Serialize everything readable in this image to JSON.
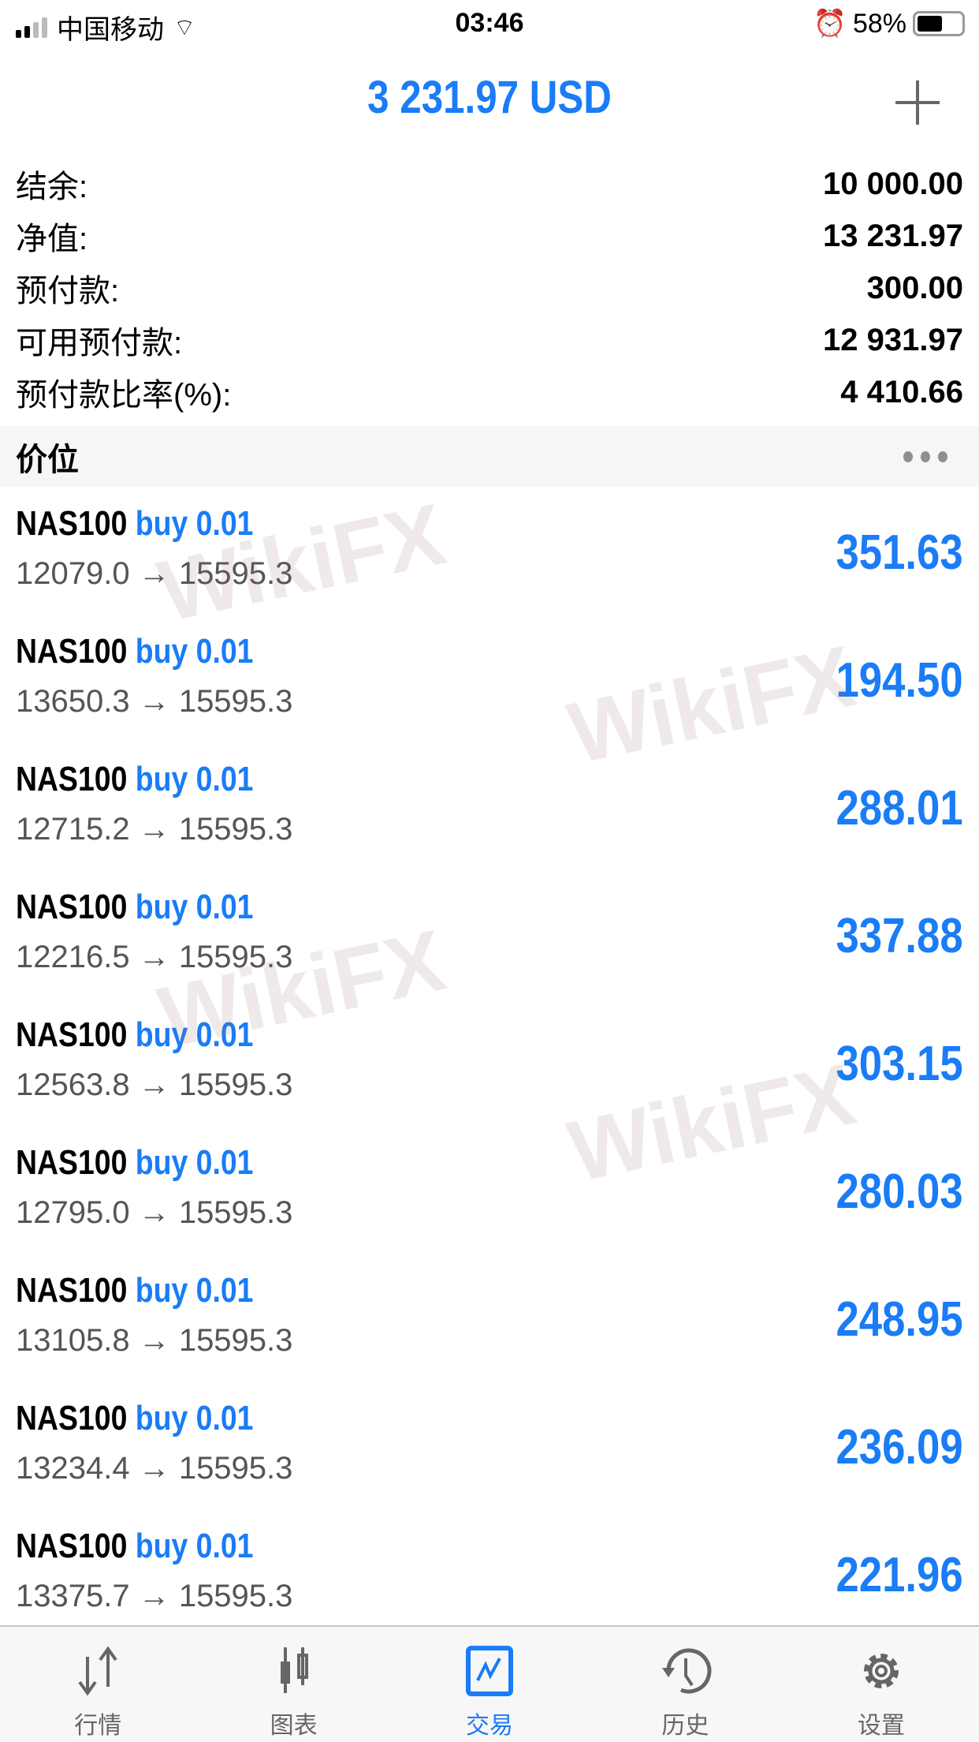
{
  "status_bar": {
    "carrier": "中国移动",
    "time": "03:46",
    "battery": "58%",
    "battery_level": 0.58
  },
  "header": {
    "title": "3 231.97 USD",
    "add_icon": "plus-icon"
  },
  "summary": [
    {
      "label": "结余:",
      "value": "10 000.00"
    },
    {
      "label": "净值:",
      "value": "13 231.97"
    },
    {
      "label": "预付款:",
      "value": "300.00"
    },
    {
      "label": "可用预付款:",
      "value": "12 931.97"
    },
    {
      "label": "预付款比率(%):",
      "value": "4 410.66"
    }
  ],
  "section": {
    "title": "价位"
  },
  "positions": [
    {
      "symbol": "NAS100",
      "side": "buy 0.01",
      "prices": "12079.0 → 15595.3",
      "profit": "351.63"
    },
    {
      "symbol": "NAS100",
      "side": "buy 0.01",
      "prices": "13650.3 → 15595.3",
      "profit": "194.50"
    },
    {
      "symbol": "NAS100",
      "side": "buy 0.01",
      "prices": "12715.2 → 15595.3",
      "profit": "288.01"
    },
    {
      "symbol": "NAS100",
      "side": "buy 0.01",
      "prices": "12216.5 → 15595.3",
      "profit": "337.88"
    },
    {
      "symbol": "NAS100",
      "side": "buy 0.01",
      "prices": "12563.8 → 15595.3",
      "profit": "303.15"
    },
    {
      "symbol": "NAS100",
      "side": "buy 0.01",
      "prices": "12795.0 → 15595.3",
      "profit": "280.03"
    },
    {
      "symbol": "NAS100",
      "side": "buy 0.01",
      "prices": "13105.8 → 15595.3",
      "profit": "248.95"
    },
    {
      "symbol": "NAS100",
      "side": "buy 0.01",
      "prices": "13234.4 → 15595.3",
      "profit": "236.09"
    },
    {
      "symbol": "NAS100",
      "side": "buy 0.01",
      "prices": "13375.7 → 15595.3",
      "profit": "221.96"
    }
  ],
  "watermark": "WikiFX",
  "tabs": [
    {
      "label": "行情",
      "icon": "quotes-arrows-icon"
    },
    {
      "label": "图表",
      "icon": "candlestick-icon"
    },
    {
      "label": "交易",
      "icon": "trade-chart-icon",
      "active": true
    },
    {
      "label": "历史",
      "icon": "history-icon"
    },
    {
      "label": "设置",
      "icon": "gear-icon"
    }
  ],
  "colors": {
    "accent": "#1a7cf6",
    "inactive": "#666666"
  }
}
